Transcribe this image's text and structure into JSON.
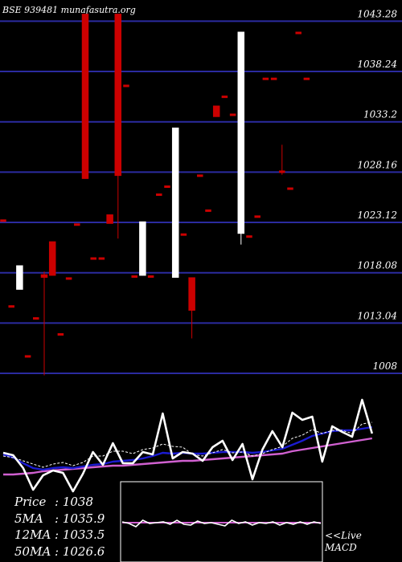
{
  "header": {
    "source": "BSE 939481 munafasutra.org"
  },
  "colors": {
    "background": "#000000",
    "grid": "#2b2b9f",
    "up": "#ffffff",
    "down": "#cc0000",
    "price_line": "#ffffff",
    "ma_short": "#ffffff",
    "ma_mid": "#1b1bd0",
    "ma_long": "#d060d0",
    "text": "#ffffff"
  },
  "chart_data": [
    {
      "type": "candlestick",
      "title": "BSE 939481 munafasutra.org",
      "yticks": [
        1043.28,
        1038.24,
        1033.2,
        1028.16,
        1023.12,
        1018.08,
        1013.04,
        1008
      ],
      "ylim": [
        1007.6,
        1045.4
      ],
      "grid": true,
      "candles": [
        {
          "o": 1023.4,
          "h": 1023.4,
          "l": 1023.2,
          "c": 1023.2
        },
        {
          "o": 1014.8,
          "h": 1014.8,
          "l": 1014.6,
          "c": 1014.6
        },
        {
          "o": 1016.4,
          "h": 1018.8,
          "l": 1016.4,
          "c": 1018.8
        },
        {
          "o": 1009.8,
          "h": 1009.8,
          "l": 1009.6,
          "c": 1009.6
        },
        {
          "o": 1013.6,
          "h": 1013.6,
          "l": 1013.4,
          "c": 1013.4
        },
        {
          "o": 1017.9,
          "h": 1018.2,
          "l": 1007.8,
          "c": 1017.6
        },
        {
          "o": 1021.2,
          "h": 1021.2,
          "l": 1017.8,
          "c": 1017.8
        },
        {
          "o": 1012.0,
          "h": 1012.0,
          "l": 1011.8,
          "c": 1011.8
        },
        {
          "o": 1017.6,
          "h": 1017.6,
          "l": 1017.4,
          "c": 1017.4
        },
        {
          "o": 1023.0,
          "h": 1023.0,
          "l": 1022.8,
          "c": 1022.8
        },
        {
          "o": 1044.0,
          "h": 1044.0,
          "l": 1027.5,
          "c": 1027.5
        },
        {
          "o": 1019.6,
          "h": 1019.6,
          "l": 1019.4,
          "c": 1019.4
        },
        {
          "o": 1019.6,
          "h": 1019.6,
          "l": 1019.4,
          "c": 1019.4
        },
        {
          "o": 1023.9,
          "h": 1023.9,
          "l": 1023.0,
          "c": 1023.0
        },
        {
          "o": 1044.0,
          "h": 1044.0,
          "l": 1021.5,
          "c": 1027.8
        },
        {
          "o": 1036.9,
          "h": 1036.9,
          "l": 1036.7,
          "c": 1036.7
        },
        {
          "o": 1017.8,
          "h": 1017.8,
          "l": 1017.6,
          "c": 1017.6
        },
        {
          "o": 1017.8,
          "h": 1023.2,
          "l": 1017.8,
          "c": 1023.2
        },
        {
          "o": 1017.8,
          "h": 1017.8,
          "l": 1017.6,
          "c": 1017.6
        },
        {
          "o": 1026.0,
          "h": 1026.0,
          "l": 1025.8,
          "c": 1025.8
        },
        {
          "o": 1026.8,
          "h": 1026.8,
          "l": 1026.6,
          "c": 1026.6
        },
        {
          "o": 1017.6,
          "h": 1032.6,
          "l": 1017.6,
          "c": 1032.6
        },
        {
          "o": 1022.0,
          "h": 1022.0,
          "l": 1021.8,
          "c": 1021.8
        },
        {
          "o": 1017.6,
          "h": 1017.6,
          "l": 1011.5,
          "c": 1014.3
        },
        {
          "o": 1027.9,
          "h": 1027.9,
          "l": 1027.7,
          "c": 1027.7
        },
        {
          "o": 1024.4,
          "h": 1024.4,
          "l": 1024.2,
          "c": 1024.2
        },
        {
          "o": 1034.8,
          "h": 1034.8,
          "l": 1033.7,
          "c": 1033.7
        },
        {
          "o": 1035.8,
          "h": 1035.8,
          "l": 1035.6,
          "c": 1035.6
        },
        {
          "o": 1034.0,
          "h": 1034.0,
          "l": 1033.8,
          "c": 1033.8
        },
        {
          "o": 1022.0,
          "h": 1042.2,
          "l": 1020.9,
          "c": 1042.2
        },
        {
          "o": 1021.8,
          "h": 1021.8,
          "l": 1021.6,
          "c": 1021.6
        },
        {
          "o": 1023.8,
          "h": 1023.8,
          "l": 1023.6,
          "c": 1023.6
        },
        {
          "o": 1037.6,
          "h": 1037.6,
          "l": 1037.4,
          "c": 1037.4
        },
        {
          "o": 1037.6,
          "h": 1037.6,
          "l": 1037.4,
          "c": 1037.4
        },
        {
          "o": 1028.3,
          "h": 1030.9,
          "l": 1027.9,
          "c": 1028.1
        },
        {
          "o": 1026.6,
          "h": 1026.6,
          "l": 1026.4,
          "c": 1026.4
        },
        {
          "o": 1042.2,
          "h": 1042.2,
          "l": 1042.0,
          "c": 1042.0
        },
        {
          "o": 1037.6,
          "h": 1037.6,
          "l": 1037.4,
          "c": 1037.4
        }
      ]
    },
    {
      "type": "line",
      "series": [
        {
          "role": "price",
          "values": [
            564,
            567,
            583,
            610,
            592,
            586,
            589,
            612,
            590,
            563,
            579,
            552,
            577,
            577,
            563,
            566,
            515,
            571,
            563,
            565,
            574,
            557,
            549,
            573,
            553,
            597,
            560,
            537,
            557,
            514,
            523,
            519,
            575,
            531,
            538,
            544,
            498,
            540
          ]
        },
        {
          "role": "ma_short",
          "values": [
            568,
            570,
            574,
            578,
            582,
            578,
            576,
            580,
            576,
            568,
            568,
            562,
            562,
            565,
            560,
            558,
            553,
            556,
            557,
            566,
            568,
            564,
            560,
            564,
            563,
            568,
            565,
            560,
            556,
            546,
            542,
            535,
            540,
            536,
            536,
            540,
            528,
            526
          ]
        },
        {
          "role": "ma_mid",
          "values": [
            566,
            570,
            577,
            583,
            585,
            583,
            582,
            583,
            581,
            579,
            578,
            575,
            574,
            573,
            571,
            568,
            564,
            565,
            564,
            565,
            565,
            564,
            563,
            563,
            563,
            564,
            563,
            561,
            559,
            554,
            549,
            543,
            540,
            537,
            536,
            536,
            534,
            532
          ]
        },
        {
          "role": "ma_long",
          "values": [
            591,
            591,
            590,
            589,
            587,
            586,
            585,
            584,
            583,
            582,
            581,
            580,
            580,
            579,
            578,
            577,
            576,
            575,
            574,
            574,
            573,
            572,
            571,
            570,
            569,
            568,
            567,
            566,
            565,
            562,
            560,
            558,
            556,
            554,
            552,
            550,
            548,
            546
          ]
        }
      ]
    },
    {
      "type": "line",
      "series": [
        {
          "role": "macd",
          "values": [
            650,
            652,
            656,
            648,
            652,
            651,
            650,
            653,
            648,
            653,
            654,
            649,
            652,
            651,
            653,
            655,
            648,
            652,
            650,
            654,
            651,
            652,
            650,
            654,
            651,
            653,
            650,
            653,
            650,
            652
          ]
        }
      ]
    }
  ],
  "stats": [
    {
      "label": "Price",
      "value": ": 1038"
    },
    {
      "label": "5MA",
      "value": ": 1035.9"
    },
    {
      "label": "12MA",
      "value": ": 1033.5"
    },
    {
      "label": "50MA",
      "value": ": 1026.6"
    }
  ],
  "macd_caption": {
    "line1": "<<Live",
    "line2": "MACD"
  }
}
